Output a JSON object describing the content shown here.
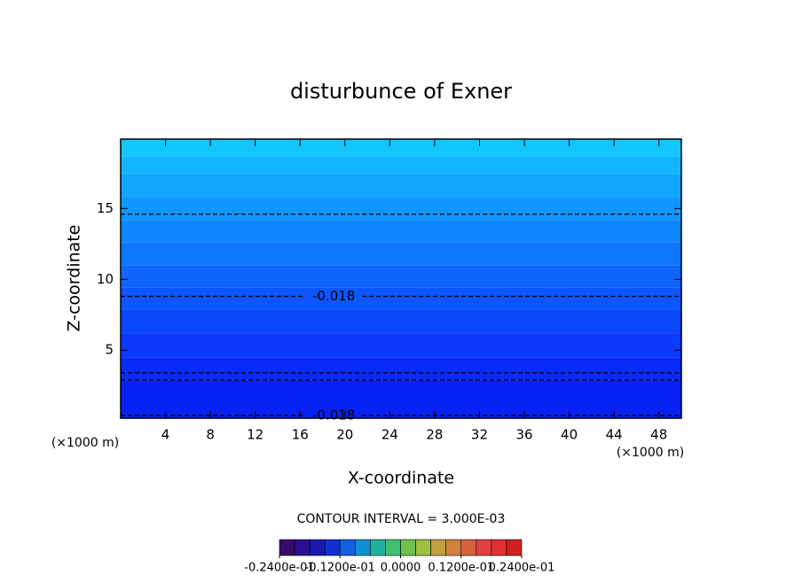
{
  "chart_data": {
    "type": "contour",
    "title": "disturbunce of Exner",
    "x_label": "X-coordinate",
    "y_label": "Z-coordinate",
    "x_unit": "(×1000 m)",
    "xlim": [
      0,
      50
    ],
    "xticks": [
      4,
      8,
      12,
      16,
      20,
      24,
      28,
      32,
      36,
      40,
      44,
      48
    ],
    "ylim": [
      0.2,
      19.9
    ],
    "yticks": [
      5,
      10,
      15
    ],
    "band_edges": [
      0.2,
      2.9,
      4.5,
      6.2,
      7.8,
      9.4,
      11,
      12.6,
      14.2,
      15.8,
      17.4,
      18.7,
      19.9
    ],
    "band_colors": [
      "#0822f5",
      "#0a2cf8",
      "#0b3afa",
      "#0c48fb",
      "#0d56fc",
      "#0e66fd",
      "#0f76fe",
      "#1086ff",
      "#1196ff",
      "#12a6ff",
      "#12b6ff",
      "#14c6ff"
    ],
    "contours": [
      {
        "z": 14.6
      },
      {
        "z": 8.8,
        "label": "-0.018",
        "label_x": 19
      },
      {
        "z": 3.4
      },
      {
        "z": 2.9
      },
      {
        "z": 0.4,
        "label": "-0.018",
        "label_x": 19
      }
    ],
    "contour_interval": "CONTOUR INTERVAL = 3.000E-03",
    "colorbar_colors": [
      "#3a0a6a",
      "#2a1090",
      "#1a18b0",
      "#1030d0",
      "#1060e0",
      "#1090d0",
      "#20b0a0",
      "#40c070",
      "#70c050",
      "#a0c040",
      "#c0a040",
      "#d08040",
      "#d86040",
      "#e04040",
      "#e03030",
      "#d02020"
    ],
    "colorbar_lim": [
      -0.024,
      0.024
    ],
    "colorbar_ticks": [
      {
        "value": -0.024,
        "label": "-0.2400e-01"
      },
      {
        "value": -0.012,
        "label": "-0.1200e-01"
      },
      {
        "value": 0,
        "label": "0.0000"
      },
      {
        "value": 0.012,
        "label": "0.1200e-01"
      },
      {
        "value": 0.024,
        "label": "0.2400e-01"
      }
    ]
  }
}
